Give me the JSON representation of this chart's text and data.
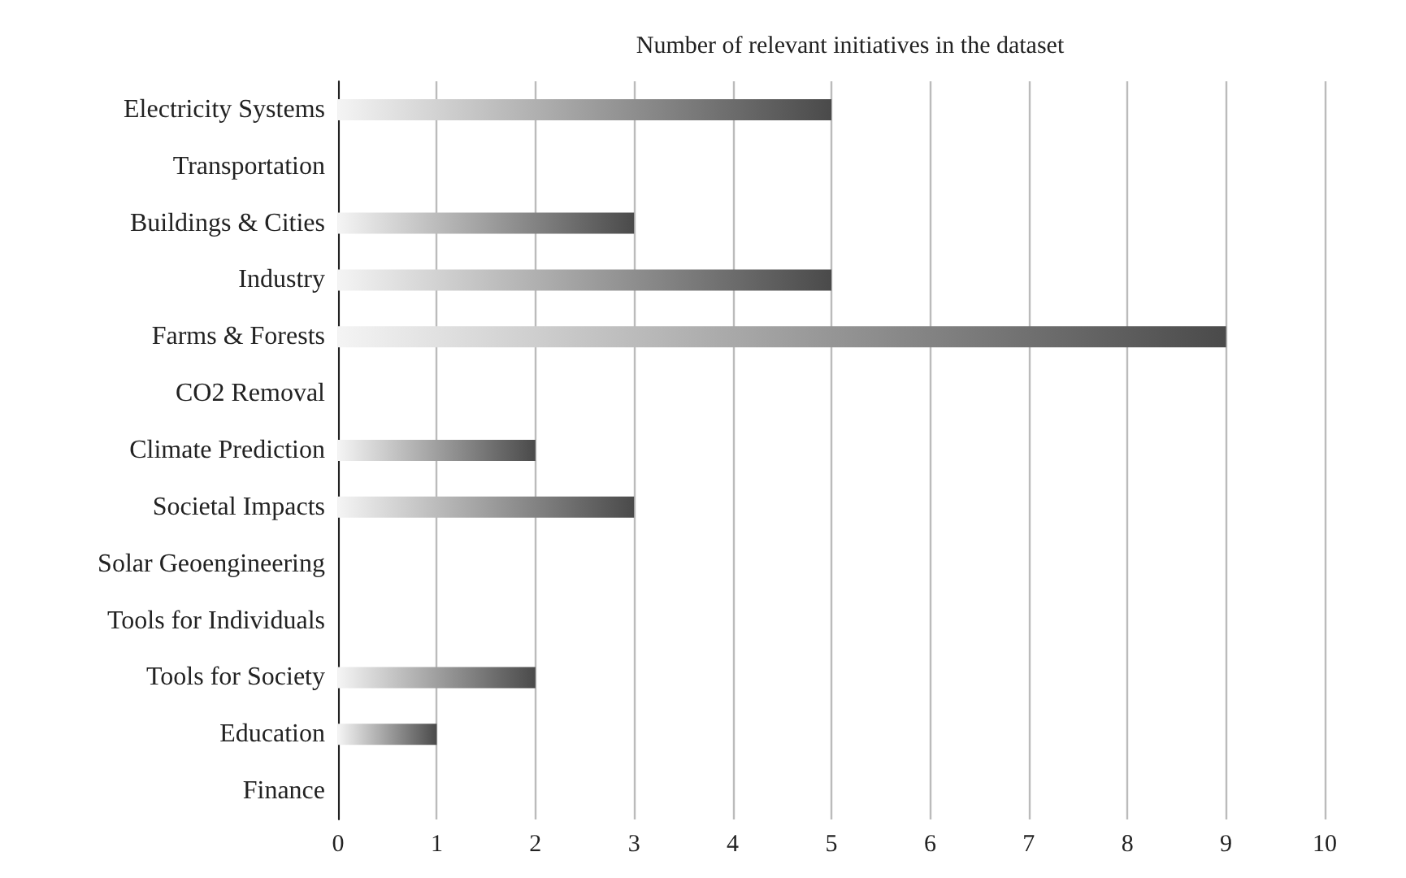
{
  "chart_data": {
    "type": "bar",
    "orientation": "horizontal",
    "title": "Number of relevant initiatives in the dataset",
    "categories": [
      "Electricity Systems",
      "Transportation",
      "Buildings & Cities",
      "Industry",
      "Farms & Forests",
      "CO2 Removal",
      "Climate Prediction",
      "Societal Impacts",
      "Solar Geoengineering",
      "Tools for Individuals",
      "Tools for Society",
      "Education",
      "Finance"
    ],
    "values": [
      5,
      0,
      3,
      5,
      9,
      0,
      2,
      3,
      0,
      0,
      2,
      1,
      0
    ],
    "color": "#4a4a4a",
    "xlim": [
      0,
      10
    ],
    "xticks": [
      0,
      1,
      2,
      3,
      4,
      5,
      6,
      7,
      8,
      9,
      10
    ],
    "grid": "x"
  }
}
